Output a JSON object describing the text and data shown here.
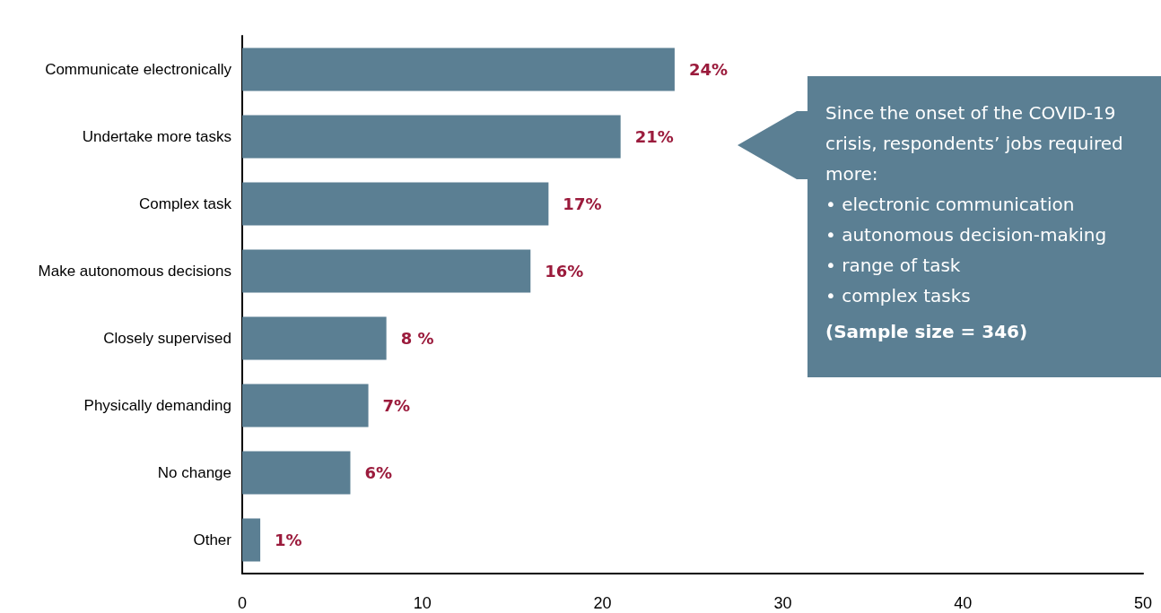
{
  "chart_data": {
    "type": "bar",
    "orientation": "horizontal",
    "categories": [
      "Communicate electronically",
      "Undertake more tasks",
      "Complex task",
      "Make autonomous decisions",
      "Closely supervised",
      "Physically demanding",
      "No change",
      "Other"
    ],
    "values": [
      24,
      21,
      17,
      16,
      8,
      7,
      6,
      1
    ],
    "value_labels": [
      "24%",
      "21%",
      "17%",
      "16%",
      "8 %",
      "7%",
      "6%",
      "1%"
    ],
    "color": "#5b7f93",
    "xlim": [
      0,
      50
    ],
    "xticks": [
      0,
      10,
      20,
      30,
      40,
      50
    ],
    "grid": false,
    "annotations": [
      "Since the onset of the COVID-19 crisis, respondents’ jobs required more:",
      "• electronic communication",
      "• autonomous decision-making",
      "• range of task",
      "• complex tasks",
      "(Sample size = 346)"
    ]
  }
}
